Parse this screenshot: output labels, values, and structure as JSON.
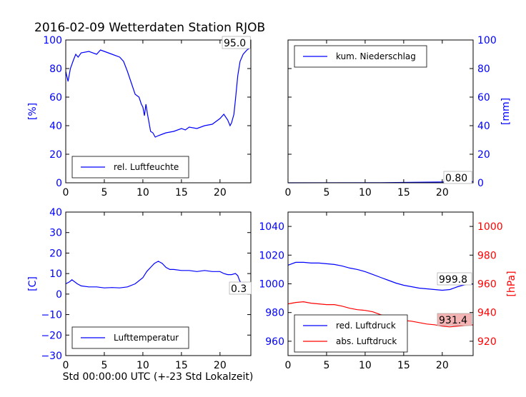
{
  "title": "2016-02-09 Wetterdaten Station RJOB",
  "xlabel": "Std 00:00:00 UTC (+-23 Std Lokalzeit)",
  "colors": {
    "blue": "#0000ff",
    "red": "#ff0000",
    "annot_box": "#f4b4b4"
  },
  "chart_data": [
    {
      "type": "line",
      "panel": "top-left",
      "ylabel": "[%]",
      "xlim": [
        0,
        24
      ],
      "ylim": [
        0,
        100
      ],
      "xticks": [
        0,
        5,
        10,
        15,
        20
      ],
      "yticks": [
        0,
        20,
        40,
        60,
        80,
        100
      ],
      "legend_position": "lower-left",
      "annotation": "95.0",
      "series": [
        {
          "name": "rel. Luftfeuchte",
          "color": "#0000ff",
          "x": [
            0,
            0.3,
            0.6,
            1.0,
            1.3,
            1.6,
            2.0,
            3.0,
            4.0,
            4.5,
            5.0,
            5.5,
            6.0,
            7.0,
            7.5,
            8.0,
            8.5,
            9.0,
            9.5,
            9.8,
            10.0,
            10.2,
            10.4,
            10.6,
            10.8,
            11.0,
            11.3,
            11.6,
            12.0,
            12.5,
            13.0,
            14.0,
            15.0,
            15.5,
            16.0,
            17.0,
            18.0,
            19.0,
            20.0,
            20.5,
            21.0,
            21.3,
            21.5,
            21.8,
            22.0,
            22.3,
            22.6,
            23.0,
            23.5,
            24.0
          ],
          "y": [
            78,
            71,
            80,
            86,
            90,
            88,
            91,
            92,
            90,
            93,
            92,
            91,
            90,
            88,
            85,
            78,
            70,
            62,
            60,
            55,
            53,
            47,
            55,
            48,
            42,
            36,
            35,
            32,
            33,
            34,
            35,
            36,
            38,
            37,
            39,
            38,
            40,
            41,
            45,
            48,
            44,
            40,
            42,
            48,
            58,
            75,
            85,
            90,
            93,
            95
          ]
        }
      ]
    },
    {
      "type": "line",
      "panel": "top-right",
      "ylabel": "[mm]",
      "xlim": [
        0,
        24
      ],
      "ylim": [
        0,
        100
      ],
      "xticks": [
        0,
        5,
        10,
        15,
        20
      ],
      "yticks": [
        0,
        20,
        40,
        60,
        80,
        100
      ],
      "legend_position": "upper-left",
      "annotation": "0.80",
      "series": [
        {
          "name": "kum. Niederschlag",
          "color": "#0000ff",
          "x": [
            0,
            12,
            16,
            20,
            22,
            24
          ],
          "y": [
            0,
            0.1,
            0.3,
            0.6,
            0.8,
            0.8
          ]
        }
      ]
    },
    {
      "type": "line",
      "panel": "bottom-left",
      "ylabel": "[C]",
      "xlim": [
        0,
        24
      ],
      "ylim": [
        -30,
        40
      ],
      "xticks": [
        0,
        5,
        10,
        15,
        20
      ],
      "yticks": [
        -30,
        -20,
        -10,
        0,
        10,
        20,
        30,
        40
      ],
      "legend_position": "lower-left",
      "annotation": "0.3",
      "series": [
        {
          "name": "Lufttemperatur",
          "color": "#0000ff",
          "x": [
            0,
            0.5,
            0.8,
            1.5,
            2.0,
            3.0,
            4.0,
            5.0,
            6.0,
            7.0,
            8.0,
            9.0,
            10.0,
            10.5,
            11.0,
            11.5,
            12.0,
            12.5,
            13.0,
            13.5,
            14.0,
            15.0,
            16.0,
            17.0,
            18.0,
            19.0,
            20.0,
            20.5,
            21.0,
            21.5,
            22.0,
            22.3,
            22.5,
            23.0,
            23.5,
            24.0
          ],
          "y": [
            5,
            6,
            7,
            5,
            4,
            3.5,
            3.5,
            3,
            3.2,
            3,
            3.5,
            5,
            8,
            11,
            13,
            15,
            16,
            15,
            13,
            12,
            12,
            11.5,
            11.5,
            11,
            11.5,
            11,
            11,
            10,
            9.5,
            9.5,
            10,
            9,
            7,
            3,
            1,
            0.3
          ]
        }
      ]
    },
    {
      "type": "line",
      "panel": "bottom-right",
      "ylabel_left": "",
      "ylabel_right": "[hPa]",
      "xlim": [
        0,
        24
      ],
      "ylim_left": [
        950,
        1050
      ],
      "ylim_right": [
        910,
        1010
      ],
      "xticks": [
        0,
        5,
        10,
        15,
        20
      ],
      "yticks_left": [
        960,
        980,
        1000,
        1020,
        1040
      ],
      "yticks_right": [
        920,
        940,
        960,
        980,
        1000
      ],
      "legend_position": "lower-left",
      "annotations": [
        "999.8",
        "931.4"
      ],
      "series": [
        {
          "name": "red. Luftdruck",
          "color": "#0000ff",
          "axis": "left",
          "x": [
            0,
            1,
            2,
            3,
            4,
            5,
            6,
            7,
            8,
            9,
            10,
            11,
            12,
            13,
            14,
            15,
            16,
            17,
            18,
            19,
            20,
            21,
            22,
            23,
            24
          ],
          "y": [
            1013,
            1015,
            1015,
            1014.5,
            1014.5,
            1014,
            1013.5,
            1012.5,
            1011,
            1010,
            1008.5,
            1006.5,
            1004.5,
            1002.5,
            1000.5,
            999,
            998,
            997,
            996.5,
            996,
            995.5,
            996,
            998,
            999.5,
            999.8
          ]
        },
        {
          "name": "abs. Luftdruck",
          "color": "#ff0000",
          "axis": "right",
          "x": [
            0,
            1,
            2,
            3,
            4,
            5,
            6,
            7,
            8,
            9,
            10,
            11,
            12,
            13,
            14,
            15,
            16,
            17,
            18,
            19,
            20,
            21,
            22,
            23,
            24
          ],
          "y": [
            946,
            947,
            947.5,
            946.5,
            946,
            945.5,
            945.5,
            944.5,
            943,
            942,
            941.5,
            940.5,
            938.5,
            937,
            935.5,
            934.5,
            934,
            933,
            932,
            931.5,
            930.5,
            930,
            930.5,
            931,
            931.4
          ]
        }
      ]
    }
  ]
}
